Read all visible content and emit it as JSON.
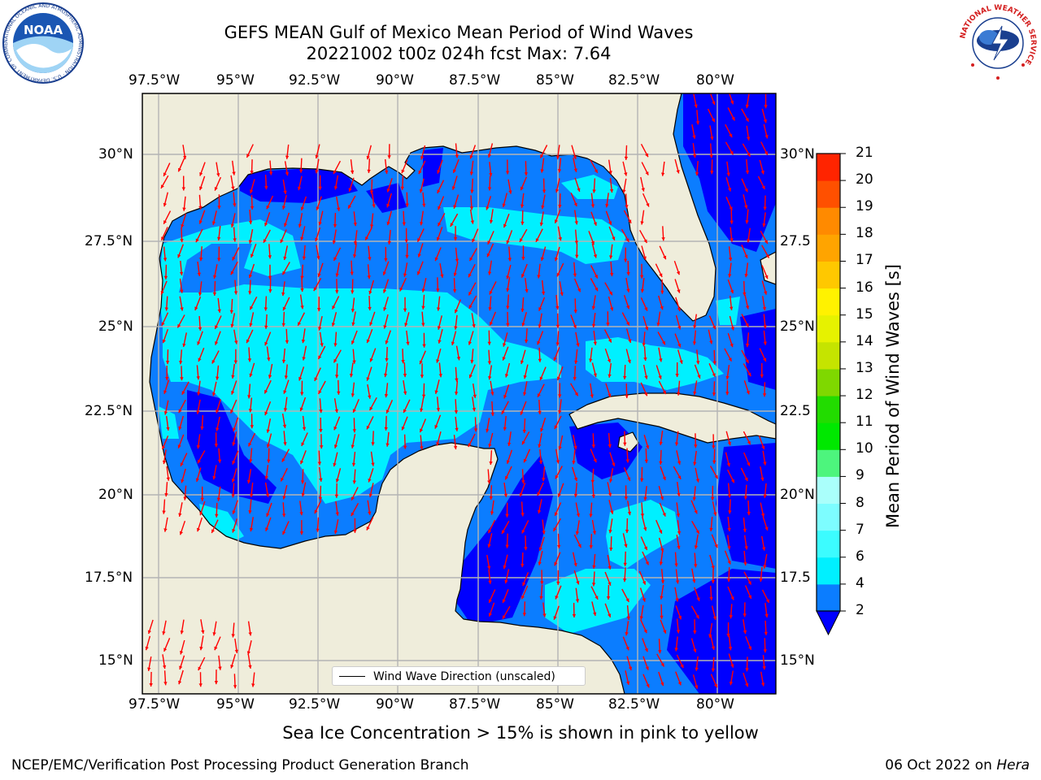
{
  "title": {
    "line1": "GEFS MEAN Gulf of Mexico Mean Period of Wind Waves",
    "line2": "20221002 t00z 024h fcst   Max: 7.64"
  },
  "map": {
    "lon_ticks": [
      "97.5°W",
      "95°W",
      "92.5°W",
      "90°W",
      "87.5°W",
      "85°W",
      "82.5°W",
      "80°W"
    ],
    "lat_ticks_left": [
      "30°N",
      "27.5°N",
      "25°N",
      "22.5°N",
      "20°N",
      "17.5°N",
      "15°N"
    ],
    "lat_ticks_right": [
      "30°N",
      "27.5",
      "25°N",
      "22.5",
      "20°N",
      "17.5",
      "15°N"
    ],
    "land_color": "#efeddb",
    "arrow_color": "#ff0000"
  },
  "legend": {
    "label": "Wind Wave Direction (unscaled)"
  },
  "colorbar": {
    "label": "Mean Period of Wind Waves [s]",
    "ticks": [
      "2",
      "4",
      "6",
      "7",
      "8",
      "9",
      "10",
      "11",
      "12",
      "13",
      "14",
      "15",
      "16",
      "17",
      "18",
      "19",
      "20",
      "21"
    ],
    "levels": [
      {
        "from": 2,
        "color": "#0b7dff"
      },
      {
        "from": 4,
        "color": "#00f0ff"
      },
      {
        "from": 6,
        "color": "#3cfcff"
      },
      {
        "from": 7,
        "color": "#7dfdff"
      },
      {
        "from": 8,
        "color": "#aafffb"
      },
      {
        "from": 9,
        "color": "#4df57d"
      },
      {
        "from": 10,
        "color": "#00e800"
      },
      {
        "from": 11,
        "color": "#22dc00"
      },
      {
        "from": 12,
        "color": "#7fd800"
      },
      {
        "from": 13,
        "color": "#c5e400"
      },
      {
        "from": 14,
        "color": "#e6f200"
      },
      {
        "from": 15,
        "color": "#fff200"
      },
      {
        "from": 16,
        "color": "#ffc800"
      },
      {
        "from": 17,
        "color": "#ffa400"
      },
      {
        "from": 18,
        "color": "#ff8a00"
      },
      {
        "from": 19,
        "color": "#ff5000"
      },
      {
        "from": 20,
        "color": "#ff2400"
      }
    ],
    "extend_color": "#0000ff"
  },
  "note": "Sea Ice Concentration > 15% is shown in pink to yellow",
  "footer": {
    "left": "NCEP/EMC/Verification Post Processing Product Generation Branch",
    "right_date": "06 Oct 2022 on ",
    "right_host": "Hera"
  },
  "logos": {
    "noaa": "NOAA",
    "noaa_ring": "NATIONAL OCEANIC AND ATMOSPHERIC ADMINISTRATION · U.S. DEPARTMENT OF COMMERCE",
    "nws_ring": "NATIONAL WEATHER SERVICE"
  }
}
